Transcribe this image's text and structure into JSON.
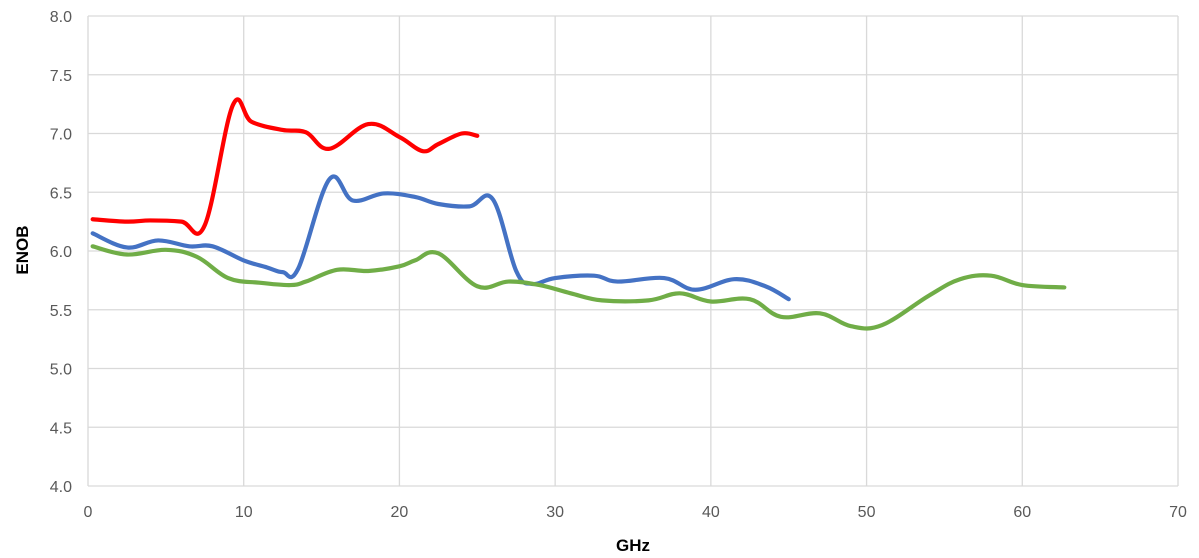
{
  "chart_data": {
    "type": "line",
    "title": "",
    "xlabel": "GHz",
    "ylabel": "ENOB",
    "xlim": [
      0,
      70
    ],
    "ylim": [
      4.0,
      8.0
    ],
    "xticks": [
      0,
      10,
      20,
      30,
      40,
      50,
      60,
      70
    ],
    "yticks": [
      "4.0",
      "4.5",
      "5.0",
      "5.5",
      "6.0",
      "6.5",
      "7.0",
      "7.5",
      "8.0"
    ],
    "grid": true,
    "series": [
      {
        "color": "#ff0000",
        "x": [
          0.3,
          2.5,
          4,
          6,
          7.5,
          9.3,
          10.5,
          12.5,
          14,
          15.5,
          18,
          20,
          21.5,
          22.5,
          24,
          25
        ],
        "y": [
          6.27,
          6.25,
          6.26,
          6.25,
          6.22,
          7.24,
          7.1,
          7.03,
          7.01,
          6.87,
          7.08,
          6.97,
          6.85,
          6.91,
          7.0,
          6.98
        ]
      },
      {
        "color": "#4472c4",
        "x": [
          0.3,
          2.5,
          4.5,
          6.5,
          8,
          10,
          11.5,
          12.5,
          13.5,
          15.5,
          17,
          19,
          21,
          22.5,
          24.5,
          26,
          27.5,
          28.5,
          30,
          32.5,
          34,
          37,
          39,
          41.5,
          43.5,
          45
        ],
        "y": [
          6.15,
          6.03,
          6.09,
          6.04,
          6.04,
          5.92,
          5.86,
          5.82,
          5.85,
          6.61,
          6.43,
          6.49,
          6.46,
          6.4,
          6.38,
          6.44,
          5.83,
          5.72,
          5.77,
          5.79,
          5.74,
          5.77,
          5.67,
          5.76,
          5.7,
          5.59
        ]
      },
      {
        "color": "#70ad47",
        "x": [
          0.3,
          2.5,
          5,
          7,
          9,
          11,
          13,
          14,
          16,
          18,
          20,
          21,
          22.5,
          25,
          27,
          29,
          31,
          33,
          36,
          38,
          40,
          42.5,
          44.5,
          47,
          49,
          51,
          54,
          56,
          58,
          60,
          62.7
        ],
        "y": [
          6.04,
          5.97,
          6.01,
          5.95,
          5.77,
          5.73,
          5.71,
          5.74,
          5.84,
          5.83,
          5.87,
          5.92,
          5.98,
          5.7,
          5.74,
          5.71,
          5.64,
          5.58,
          5.58,
          5.64,
          5.57,
          5.59,
          5.44,
          5.47,
          5.36,
          5.37,
          5.62,
          5.76,
          5.79,
          5.71,
          5.69
        ]
      }
    ]
  }
}
